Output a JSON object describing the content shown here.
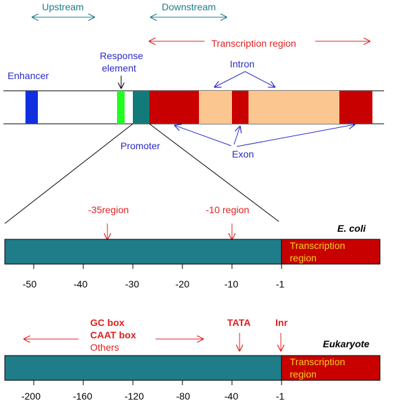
{
  "directions": {
    "upstream": "Upstream",
    "downstream": "Downstream",
    "transcription_region": "Transcription region"
  },
  "gene": {
    "enhancer": "Enhancer",
    "response_element_line1": "Response",
    "response_element_line2": "element",
    "intron": "Intron",
    "promoter": "Promoter",
    "exon": "Exon"
  },
  "ecoli": {
    "organism": "E. coli",
    "region_35": "-35region",
    "region_10": "-10 region",
    "transcription_line1": "Transcription",
    "transcription_line2": "region",
    "ticks": [
      "-50",
      "-40",
      "-30",
      "-20",
      "-10",
      "-1"
    ]
  },
  "eukaryote": {
    "organism": "Eukaryote",
    "gc_box": "GC box",
    "caat_box": "CAAT box",
    "others": "Others",
    "tata": "TATA",
    "inr": "Inr",
    "transcription_line1": "Transcription",
    "transcription_line2": "region",
    "ticks": [
      "-200",
      "-160",
      "-120",
      "-80",
      "-40",
      "-1"
    ]
  },
  "colors": {
    "teal": "#1f7c89",
    "dark_red": "#c80000",
    "peach": "#fbc690",
    "enhancer_blue": "#1030e0",
    "response_green": "#20ff20",
    "promoter_teal": "#137a7a",
    "label_red": "#e02020",
    "label_blue": "#2a2ac8",
    "label_teal": "#1f7c89",
    "label_yellow": "#f0d020"
  }
}
